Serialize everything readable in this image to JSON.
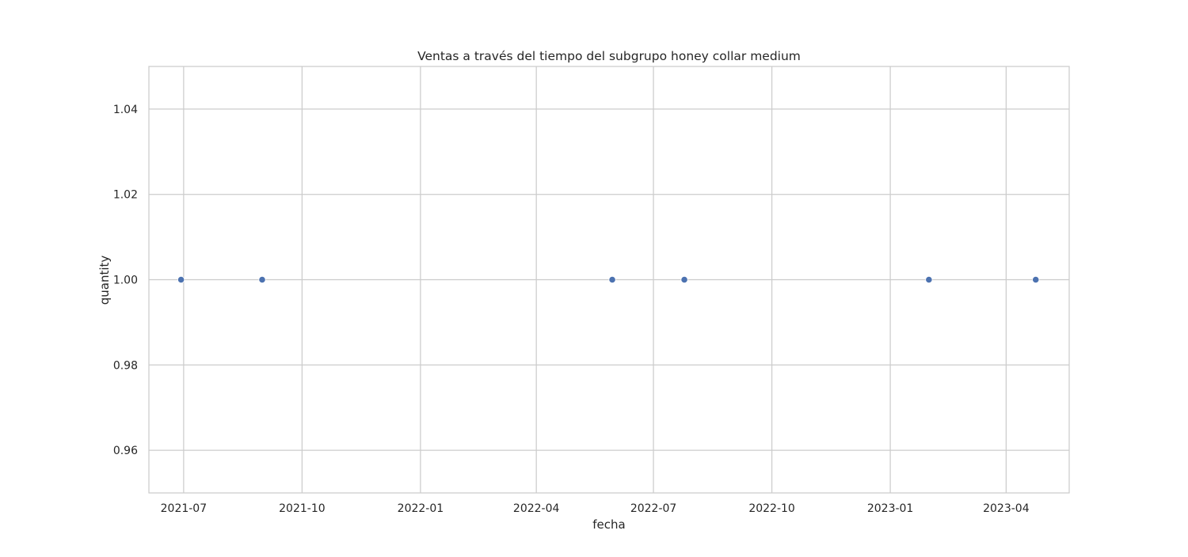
{
  "chart_data": {
    "type": "scatter",
    "title": "Ventas a través del tiempo del subgrupo honey collar medium",
    "xlabel": "fecha",
    "ylabel": "quantity",
    "x_axis": {
      "scale": "time",
      "range": [
        "2021-06-04",
        "2023-05-20"
      ],
      "ticks": [
        "2021-07-01",
        "2021-10-01",
        "2022-01-01",
        "2022-04-01",
        "2022-07-01",
        "2022-10-01",
        "2023-01-01",
        "2023-04-01"
      ],
      "tick_labels": [
        "2021-07",
        "2021-10",
        "2022-01",
        "2022-04",
        "2022-07",
        "2022-10",
        "2023-01",
        "2023-04"
      ]
    },
    "y_axis": {
      "range": [
        0.95,
        1.05
      ],
      "ticks": [
        0.96,
        0.98,
        1.0,
        1.02,
        1.04
      ],
      "tick_labels": [
        "0.96",
        "0.98",
        "1.00",
        "1.02",
        "1.04"
      ]
    },
    "grid": true,
    "series": [
      {
        "color": "#4c72b0",
        "points": [
          {
            "x": "2021-06-29",
            "y": 1.0
          },
          {
            "x": "2021-08-31",
            "y": 1.0
          },
          {
            "x": "2022-05-30",
            "y": 1.0
          },
          {
            "x": "2022-07-25",
            "y": 1.0
          },
          {
            "x": "2023-01-31",
            "y": 1.0
          },
          {
            "x": "2023-04-24",
            "y": 1.0
          }
        ]
      }
    ],
    "colors": {
      "grid": "#cccccc",
      "spine": "#cccccc",
      "marker": "#4c72b0",
      "marker_edge": "#ffffff"
    }
  }
}
